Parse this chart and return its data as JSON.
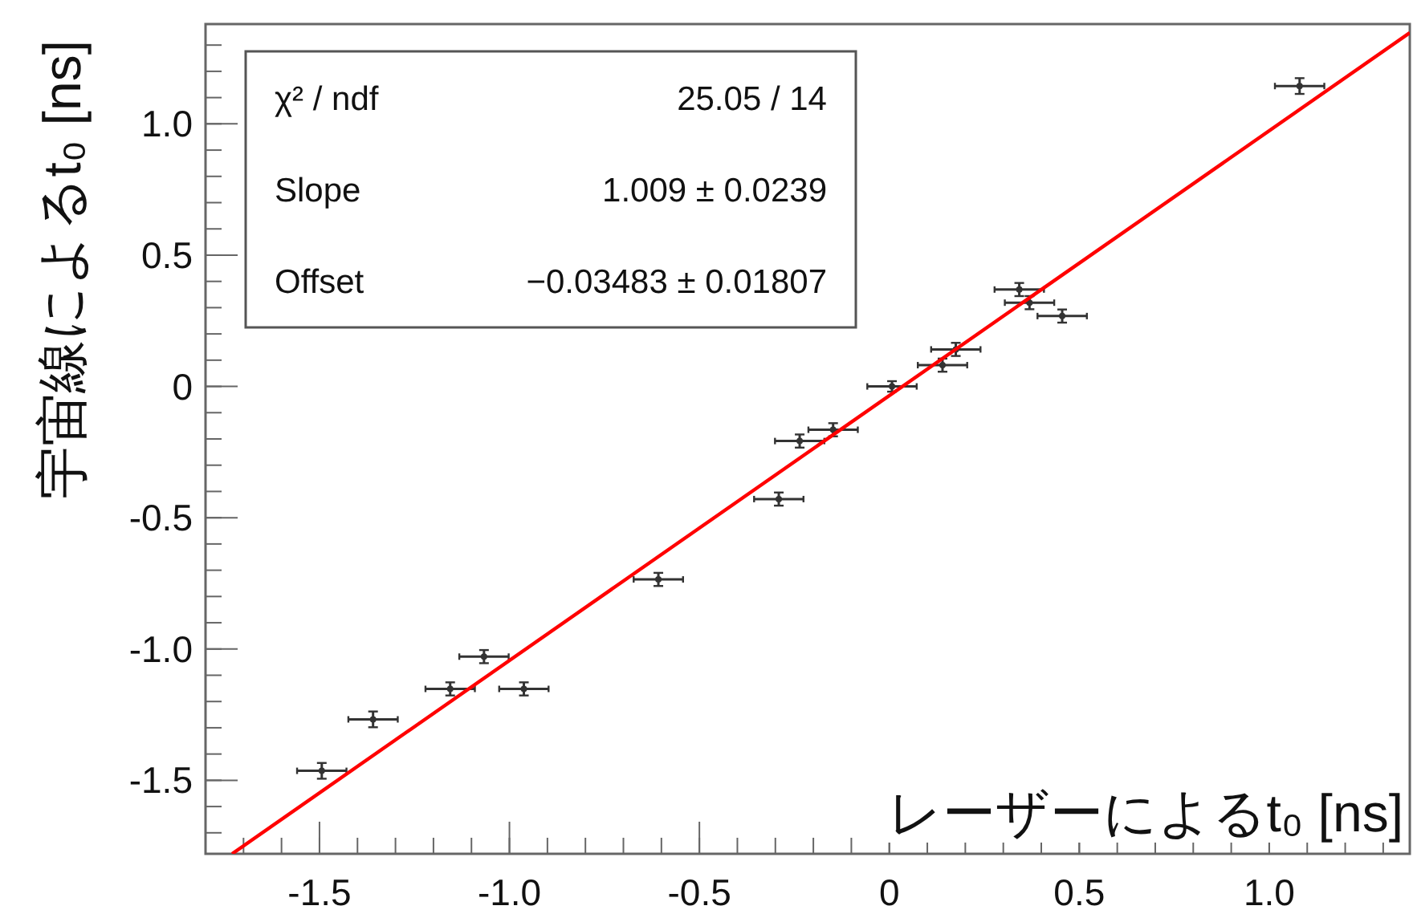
{
  "chart_data": {
    "type": "scatter",
    "xlabel": "レーザーによるt₀ [ns]",
    "ylabel": "宇宙線によるt₀ [ns]",
    "annotations": [
      "χ² / ndf",
      "25.05 / 14",
      "Slope",
      "1.009 ± 0.0239",
      "Offset",
      "−0.03483 ± 0.01807"
    ],
    "xlim": [
      -1.8,
      1.37
    ],
    "ylim": [
      -1.78,
      1.38
    ],
    "xticks": [
      -1.5,
      {
        "value": -1,
        "label": "-1.0"
      },
      -0.5,
      0,
      0.5,
      {
        "value": 1,
        "label": "1.0"
      }
    ],
    "yticks": [
      -1.5,
      {
        "value": -1,
        "label": "-1.0"
      },
      -0.5,
      0,
      0.5,
      {
        "value": 1,
        "label": "1.0"
      }
    ],
    "grid": false,
    "series": [
      {
        "color": "#333333",
        "marker": "circle",
        "x": [
          -1.494,
          -1.359,
          -1.156,
          -1.067,
          -0.962,
          -0.608,
          -0.291,
          -0.236,
          -0.148,
          0.007,
          0.14,
          0.175,
          0.342,
          0.369,
          0.455,
          1.08
        ],
        "values": [
          -1.464,
          -1.268,
          -1.152,
          -1.029,
          -1.152,
          -0.735,
          -0.429,
          -0.208,
          -0.165,
          0.0,
          0.081,
          0.141,
          0.369,
          0.319,
          0.268,
          1.144
        ],
        "errors": [
          0.03,
          0.03,
          0.025,
          0.025,
          0.025,
          0.025,
          0.025,
          0.025,
          0.025,
          0.02,
          0.025,
          0.025,
          0.025,
          0.025,
          0.025,
          0.03
        ],
        "xerrors": [
          0.065,
          0.065,
          0.065,
          0.065,
          0.065,
          0.065,
          0.065,
          0.065,
          0.065,
          0.065,
          0.065,
          0.065,
          0.065,
          0.065,
          0.065,
          0.065
        ]
      },
      {
        "type": "line",
        "color": "#ff0000",
        "line_style": "solid",
        "x": [
          -1.73,
          1.37
        ],
        "values": [
          -1.78,
          1.347
        ]
      }
    ]
  }
}
